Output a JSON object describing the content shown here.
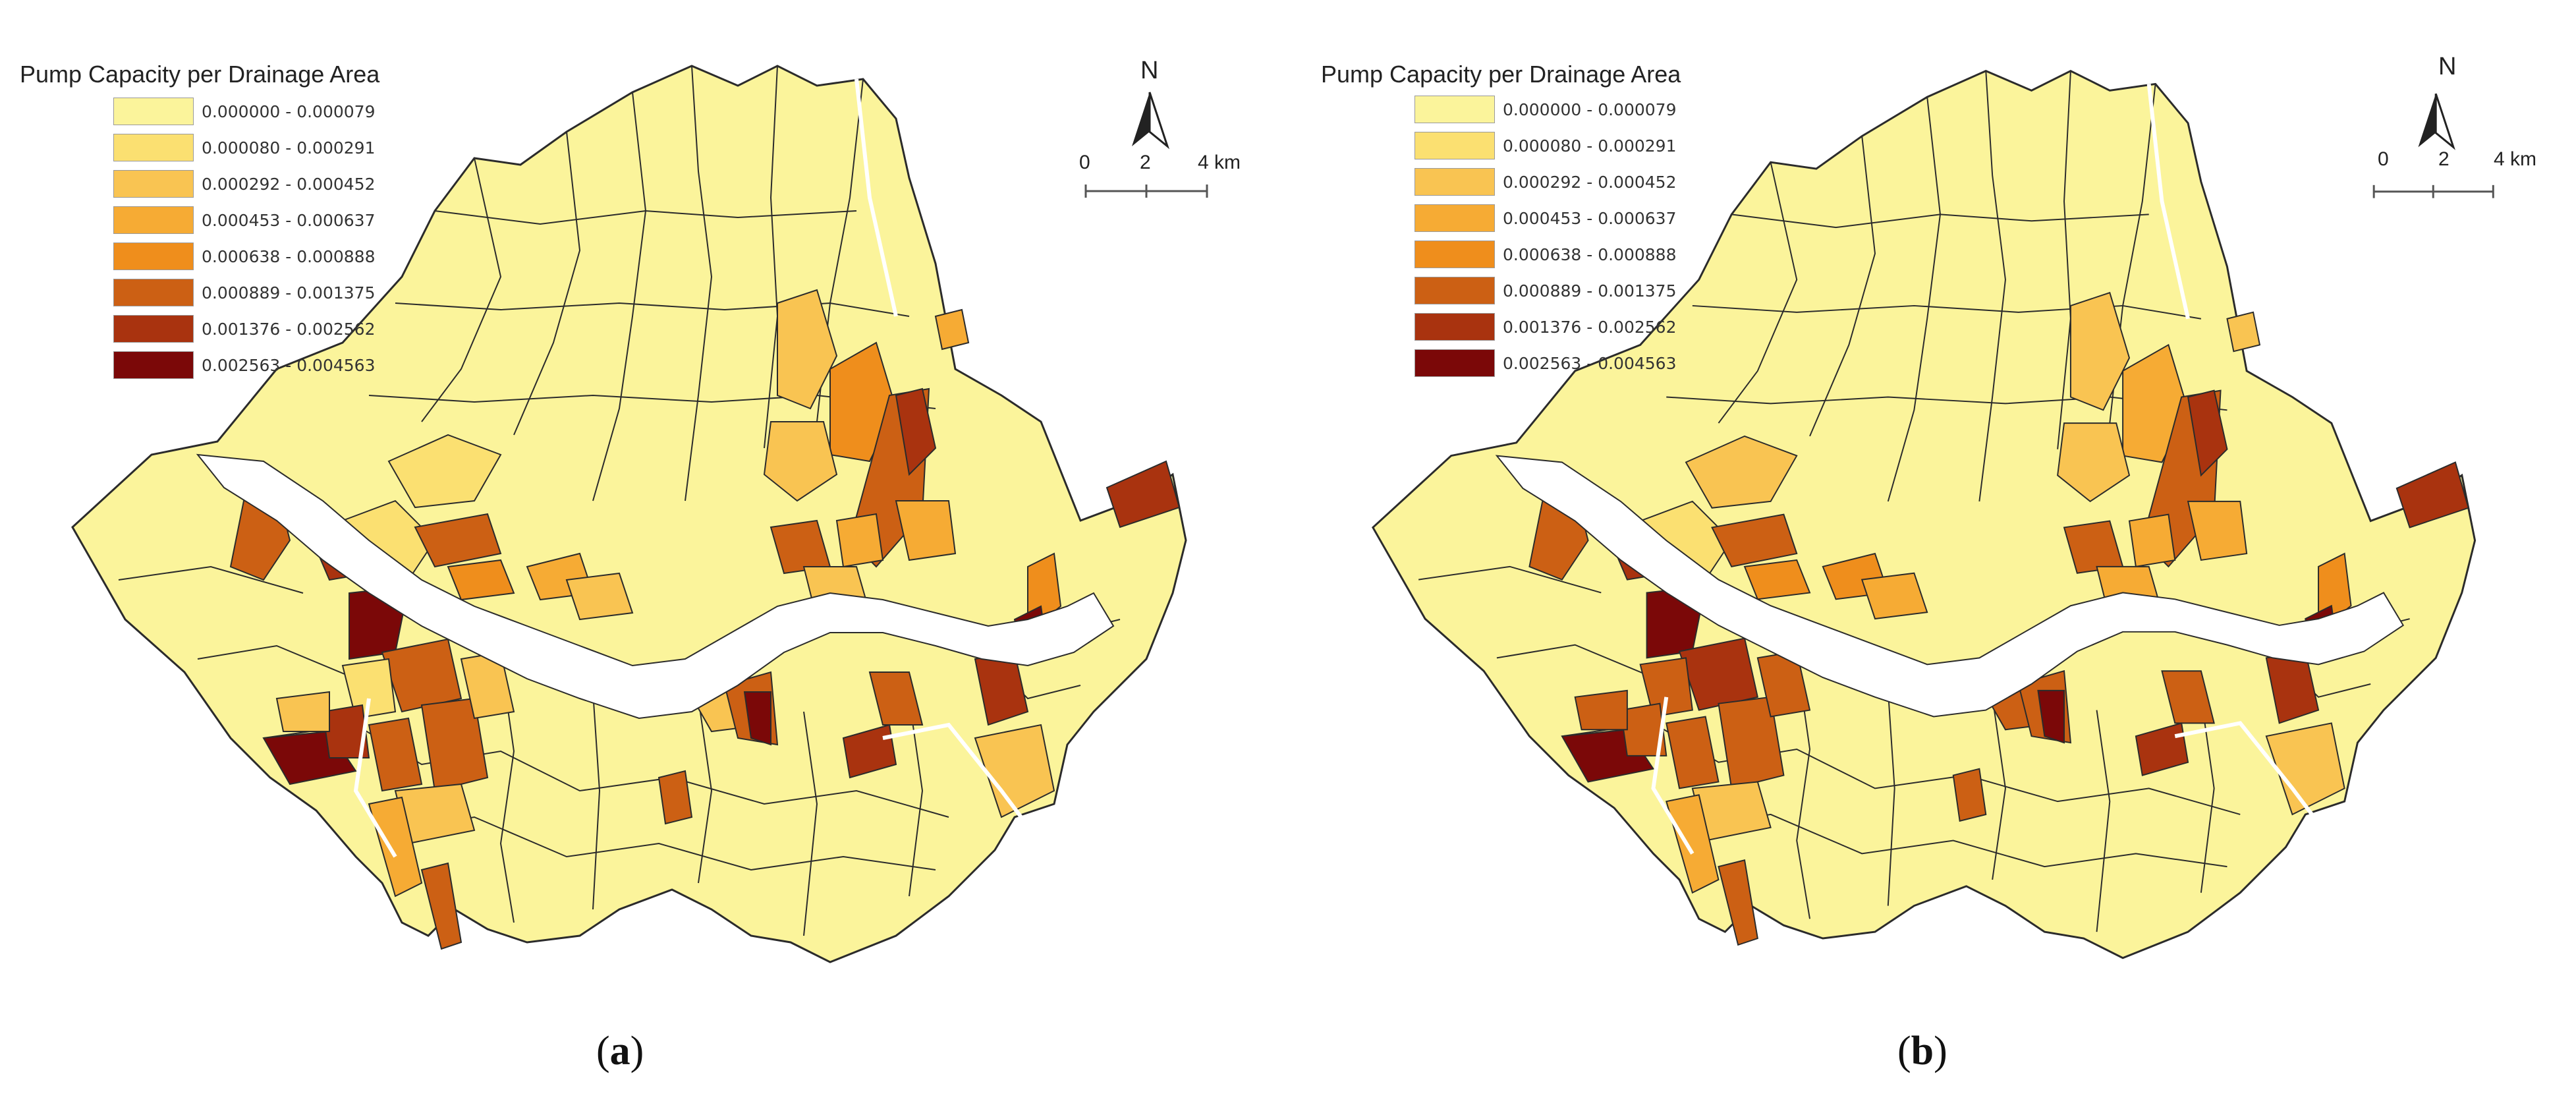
{
  "legend": {
    "title": "Pump Capacity per Drainage Area",
    "classes": [
      {
        "range": "0.000000 - 0.000079",
        "color": "#fbf49b"
      },
      {
        "range": "0.000080 - 0.000291",
        "color": "#fbe071"
      },
      {
        "range": "0.000292 - 0.000452",
        "color": "#f9c452"
      },
      {
        "range": "0.000453 - 0.000637",
        "color": "#f6ab34"
      },
      {
        "range": "0.000638 - 0.000888",
        "color": "#ef8e1c"
      },
      {
        "range": "0.000889 - 0.001375",
        "color": "#cc6014"
      },
      {
        "range": "0.001376 - 0.002562",
        "color": "#a9330f"
      },
      {
        "range": "0.002563 - 0.004563",
        "color": "#7b0808"
      }
    ]
  },
  "north_label": "N",
  "scale_bar": {
    "labels": [
      "0",
      "2",
      "4 km"
    ]
  },
  "panels": [
    {
      "id": "a",
      "caption_open": "(",
      "caption_letter": "a",
      "caption_close": ")"
    },
    {
      "id": "b",
      "caption_open": "(",
      "caption_letter": "b",
      "caption_close": ")"
    }
  ],
  "colors": {
    "river": "#ffffff",
    "boundary": "#2b2b2b"
  }
}
